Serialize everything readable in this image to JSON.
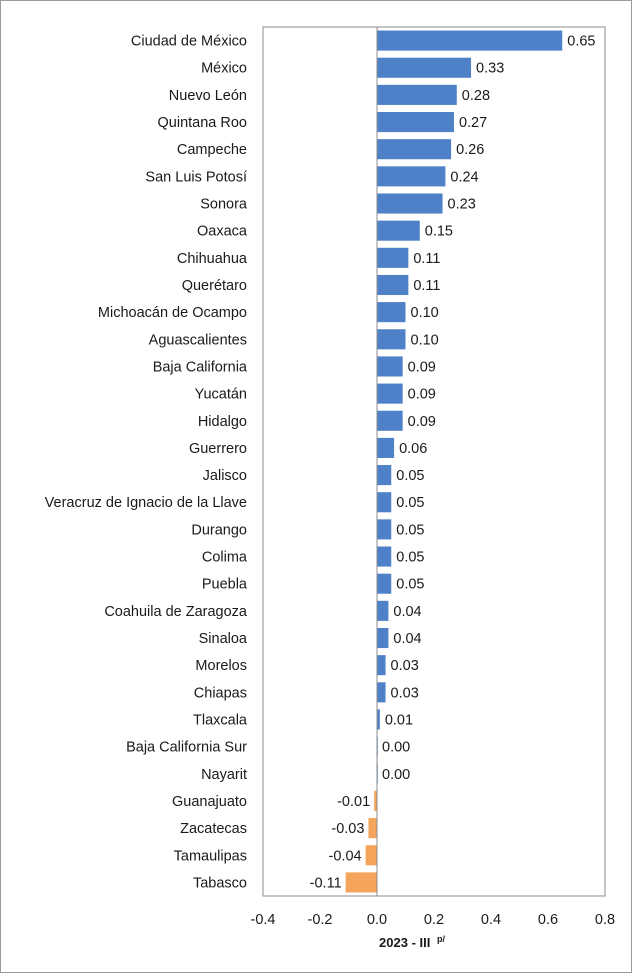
{
  "chart_data": {
    "type": "bar",
    "orientation": "horizontal",
    "categories": [
      "Ciudad de México",
      "México",
      "Nuevo León",
      "Quintana Roo",
      "Campeche",
      "San Luis Potosí",
      "Sonora",
      "Oaxaca",
      "Chihuahua",
      "Querétaro",
      "Michoacán de Ocampo",
      "Aguascalientes",
      "Baja California",
      "Yucatán",
      "Hidalgo",
      "Guerrero",
      "Jalisco",
      "Veracruz de Ignacio de la Llave",
      "Durango",
      "Colima",
      "Puebla",
      "Coahuila de Zaragoza",
      "Sinaloa",
      "Morelos",
      "Chiapas",
      "Tlaxcala",
      "Baja California Sur",
      "Nayarit",
      "Guanajuato",
      "Zacatecas",
      "Tamaulipas",
      "Tabasco"
    ],
    "values": [
      0.65,
      0.33,
      0.28,
      0.27,
      0.26,
      0.24,
      0.23,
      0.15,
      0.11,
      0.11,
      0.1,
      0.1,
      0.09,
      0.09,
      0.09,
      0.06,
      0.05,
      0.05,
      0.05,
      0.05,
      0.05,
      0.04,
      0.04,
      0.03,
      0.03,
      0.01,
      0.0,
      0.0,
      -0.01,
      -0.03,
      -0.04,
      -0.11
    ],
    "data_labels": [
      "0.65",
      "0.33",
      "0.28",
      "0.27",
      "0.26",
      "0.24",
      "0.23",
      "0.15",
      "0.11",
      "0.11",
      "0.10",
      "0.10",
      "0.09",
      "0.09",
      "0.09",
      "0.06",
      "0.05",
      "0.05",
      "0.05",
      "0.05",
      "0.05",
      "0.04",
      "0.04",
      "0.03",
      "0.03",
      "0.01",
      "0.00",
      "0.00",
      "-0.01",
      "-0.03",
      "-0.04",
      "-0.11"
    ],
    "xlim": [
      -0.4,
      0.8
    ],
    "xticks": [
      "-0.4",
      "-0.2",
      "0.0",
      "0.2",
      "0.4",
      "0.6",
      "0.8"
    ],
    "xlabel": "2023 - III",
    "xlabel_superscript": "p/",
    "grid": false,
    "colors": {
      "positive": "#4f81c9",
      "negative": "#f5a55b"
    }
  }
}
